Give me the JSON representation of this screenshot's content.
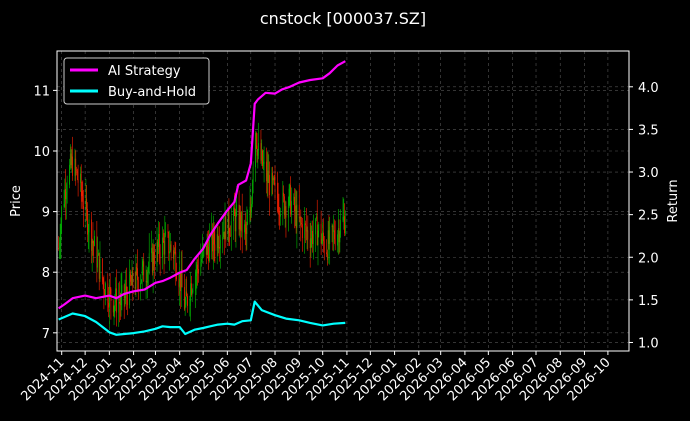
{
  "chart_data": {
    "type": "line",
    "title": "cnstock [000037.SZ]",
    "ylabel_left": "Price",
    "ylabel_right": "Return",
    "x_dates": [
      "2024-11-01",
      "2024-12-01",
      "2025-01-01",
      "2025-02-01",
      "2025-03-01",
      "2025-04-01",
      "2025-05-01",
      "2025-06-01",
      "2025-07-01",
      "2025-08-01",
      "2025-09-01",
      "2025-10-01",
      "2025-11-01",
      "2025-12-01",
      "2026-01-01",
      "2026-02-01",
      "2026-03-01",
      "2026-04-01",
      "2026-05-01",
      "2026-06-01",
      "2026-07-01",
      "2026-08-01",
      "2026-09-01",
      "2026-10-01"
    ],
    "x_tick_labels": [
      "2024-11",
      "2024-12",
      "2025-01",
      "2025-02",
      "2025-03",
      "2025-04",
      "2025-05",
      "2025-06",
      "2025-07",
      "2025-08",
      "2025-09",
      "2025-10",
      "2025-11",
      "2025-12",
      "2026-01",
      "2026-02",
      "2026-03",
      "2026-04",
      "2026-05",
      "2026-06",
      "2026-07",
      "2026-08",
      "2026-09",
      "2026-10"
    ],
    "x_range": [
      "2024-10-26",
      "2026-10-28"
    ],
    "ylim_left": [
      6.7,
      11.65
    ],
    "yticks_left": [
      7,
      8,
      9,
      10,
      11
    ],
    "ylim_right": [
      0.9,
      4.42
    ],
    "yticks_right": [
      1.0,
      1.5,
      2.0,
      2.5,
      3.0,
      3.5,
      4.0
    ],
    "grid": true,
    "legend_position": "top-left",
    "colors": {
      "ai_strategy": "#ff00ff",
      "buy_and_hold": "#00ffff",
      "candle_up": "#00bb00",
      "candle_down": "#ff2200",
      "grid": "#555555",
      "background": "#000000"
    },
    "series": [
      {
        "name": "AI Strategy",
        "axis": "right",
        "points": [
          [
            "2024-10-28",
            1.4
          ],
          [
            "2024-11-05",
            1.45
          ],
          [
            "2024-11-15",
            1.52
          ],
          [
            "2024-12-01",
            1.55
          ],
          [
            "2024-12-15",
            1.52
          ],
          [
            "2025-01-01",
            1.55
          ],
          [
            "2025-01-10",
            1.52
          ],
          [
            "2025-01-20",
            1.57
          ],
          [
            "2025-02-01",
            1.6
          ],
          [
            "2025-02-15",
            1.62
          ],
          [
            "2025-03-01",
            1.7
          ],
          [
            "2025-03-10",
            1.72
          ],
          [
            "2025-03-20",
            1.76
          ],
          [
            "2025-04-01",
            1.82
          ],
          [
            "2025-04-10",
            1.85
          ],
          [
            "2025-04-20",
            1.98
          ],
          [
            "2025-05-01",
            2.1
          ],
          [
            "2025-05-10",
            2.26
          ],
          [
            "2025-05-20",
            2.4
          ],
          [
            "2025-06-01",
            2.55
          ],
          [
            "2025-06-10",
            2.65
          ],
          [
            "2025-06-15",
            2.85
          ],
          [
            "2025-06-25",
            2.9
          ],
          [
            "2025-07-01",
            3.1
          ],
          [
            "2025-07-06",
            3.8
          ],
          [
            "2025-07-10",
            3.85
          ],
          [
            "2025-07-20",
            3.93
          ],
          [
            "2025-08-01",
            3.92
          ],
          [
            "2025-08-10",
            3.97
          ],
          [
            "2025-08-20",
            4.0
          ],
          [
            "2025-09-01",
            4.05
          ],
          [
            "2025-09-15",
            4.08
          ],
          [
            "2025-10-01",
            4.1
          ],
          [
            "2025-10-10",
            4.16
          ],
          [
            "2025-10-20",
            4.25
          ],
          [
            "2025-10-30",
            4.3
          ]
        ]
      },
      {
        "name": "Buy-and-Hold",
        "axis": "right",
        "points": [
          [
            "2024-10-28",
            1.27
          ],
          [
            "2024-11-05",
            1.3
          ],
          [
            "2024-11-15",
            1.34
          ],
          [
            "2024-12-01",
            1.31
          ],
          [
            "2024-12-15",
            1.24
          ],
          [
            "2025-01-01",
            1.12
          ],
          [
            "2025-01-10",
            1.09
          ],
          [
            "2025-01-20",
            1.1
          ],
          [
            "2025-02-01",
            1.11
          ],
          [
            "2025-02-15",
            1.13
          ],
          [
            "2025-03-01",
            1.16
          ],
          [
            "2025-03-10",
            1.19
          ],
          [
            "2025-03-20",
            1.18
          ],
          [
            "2025-04-01",
            1.18
          ],
          [
            "2025-04-08",
            1.1
          ],
          [
            "2025-04-20",
            1.15
          ],
          [
            "2025-05-01",
            1.17
          ],
          [
            "2025-05-10",
            1.19
          ],
          [
            "2025-05-20",
            1.21
          ],
          [
            "2025-06-01",
            1.22
          ],
          [
            "2025-06-10",
            1.21
          ],
          [
            "2025-06-20",
            1.25
          ],
          [
            "2025-07-01",
            1.26
          ],
          [
            "2025-07-06",
            1.48
          ],
          [
            "2025-07-15",
            1.38
          ],
          [
            "2025-08-01",
            1.32
          ],
          [
            "2025-08-15",
            1.28
          ],
          [
            "2025-09-01",
            1.26
          ],
          [
            "2025-09-15",
            1.23
          ],
          [
            "2025-10-01",
            1.2
          ],
          [
            "2025-10-15",
            1.22
          ],
          [
            "2025-10-30",
            1.23
          ]
        ]
      }
    ],
    "price_path": [
      [
        "2024-10-28",
        8.4
      ],
      [
        "2024-11-01",
        9.0
      ],
      [
        "2024-11-08",
        9.6
      ],
      [
        "2024-11-15",
        9.8
      ],
      [
        "2024-11-25",
        9.4
      ],
      [
        "2024-12-05",
        8.8
      ],
      [
        "2024-12-15",
        8.3
      ],
      [
        "2024-12-25",
        7.8
      ],
      [
        "2025-01-05",
        7.55
      ],
      [
        "2025-01-15",
        7.5
      ],
      [
        "2025-01-25",
        7.7
      ],
      [
        "2025-02-05",
        7.9
      ],
      [
        "2025-02-15",
        8.0
      ],
      [
        "2025-02-25",
        8.2
      ],
      [
        "2025-03-05",
        8.4
      ],
      [
        "2025-03-15",
        8.5
      ],
      [
        "2025-03-25",
        8.3
      ],
      [
        "2025-04-03",
        7.8
      ],
      [
        "2025-04-08",
        7.4
      ],
      [
        "2025-04-15",
        7.8
      ],
      [
        "2025-04-25",
        8.1
      ],
      [
        "2025-05-05",
        8.4
      ],
      [
        "2025-05-15",
        8.5
      ],
      [
        "2025-05-25",
        8.7
      ],
      [
        "2025-06-05",
        8.8
      ],
      [
        "2025-06-15",
        8.9
      ],
      [
        "2025-06-25",
        8.6
      ],
      [
        "2025-07-01",
        9.0
      ],
      [
        "2025-07-06",
        10.5
      ],
      [
        "2025-07-10",
        10.0
      ],
      [
        "2025-07-20",
        9.6
      ],
      [
        "2025-08-01",
        9.3
      ],
      [
        "2025-08-10",
        9.1
      ],
      [
        "2025-08-20",
        9.2
      ],
      [
        "2025-09-01",
        8.8
      ],
      [
        "2025-09-15",
        8.6
      ],
      [
        "2025-09-25",
        8.7
      ],
      [
        "2025-10-05",
        8.4
      ],
      [
        "2025-10-15",
        8.6
      ],
      [
        "2025-10-25",
        8.8
      ],
      [
        "2025-10-30",
        8.9
      ]
    ]
  }
}
